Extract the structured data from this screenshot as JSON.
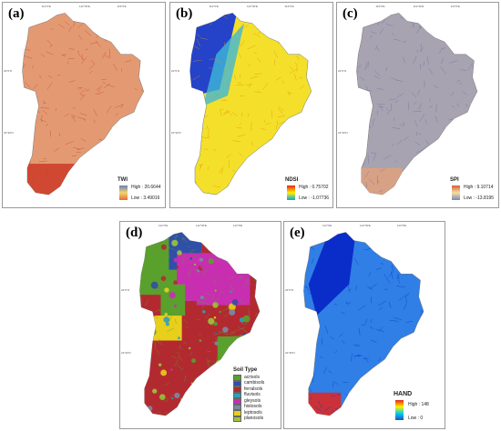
{
  "panels": [
    {
      "id": "a",
      "label": "(a)",
      "legend_title": "TWI",
      "high": "High : 20.6644",
      "low": "Low : 3.49016",
      "ramp": [
        "#6b7fb8",
        "#f3d56b",
        "#e56a3c"
      ],
      "fill": "#e39a72",
      "stroke": "#c9412a"
    },
    {
      "id": "b",
      "label": "(b)",
      "legend_title": "NDSI",
      "high": "High : 0.75702",
      "low": "Low : -1.07736",
      "ramp": [
        "#e6231a",
        "#fff200",
        "#00a6e8"
      ],
      "fill": "#f4e02a",
      "stroke": "#e98a12"
    },
    {
      "id": "c",
      "label": "(c)",
      "legend_title": "SPI",
      "high": "High : 9.10714",
      "low": "Low : -13.8195",
      "ramp": [
        "#d85a3a",
        "#f0e2a0",
        "#7d86b8"
      ],
      "fill": "#a7a3b0",
      "stroke": "#6c70a8"
    },
    {
      "id": "d",
      "label": "(d)",
      "legend_title": "Soil Type",
      "classes": [
        {
          "name": "acrisols",
          "color": "#5aa02c"
        },
        {
          "name": "cambisols",
          "color": "#2f4fa8"
        },
        {
          "name": "ferralsols",
          "color": "#b22a30"
        },
        {
          "name": "fluvisols",
          "color": "#2ea0b8"
        },
        {
          "name": "gleysols",
          "color": "#c72fb0"
        },
        {
          "name": "histosols",
          "color": "#7a8aa8"
        },
        {
          "name": "leptosols",
          "color": "#e8cf1c"
        },
        {
          "name": "planosols",
          "color": "#9ec43a"
        }
      ]
    },
    {
      "id": "e",
      "label": "(e)",
      "legend_title": "HAND",
      "high": "High : 148",
      "low": "Low : 0",
      "ramp": [
        "#e6231a",
        "#fff200",
        "#00d0e8",
        "#1f4fd8"
      ],
      "fill": "#2f7fe6",
      "stroke": "#0c32c8"
    }
  ],
  "ticks": [
    "112°0'E",
    "112°30'E",
    "113°0'E",
    "113°30'E",
    "21°30'N",
    "22°0'N",
    "22°30'N",
    "23°0'N"
  ]
}
